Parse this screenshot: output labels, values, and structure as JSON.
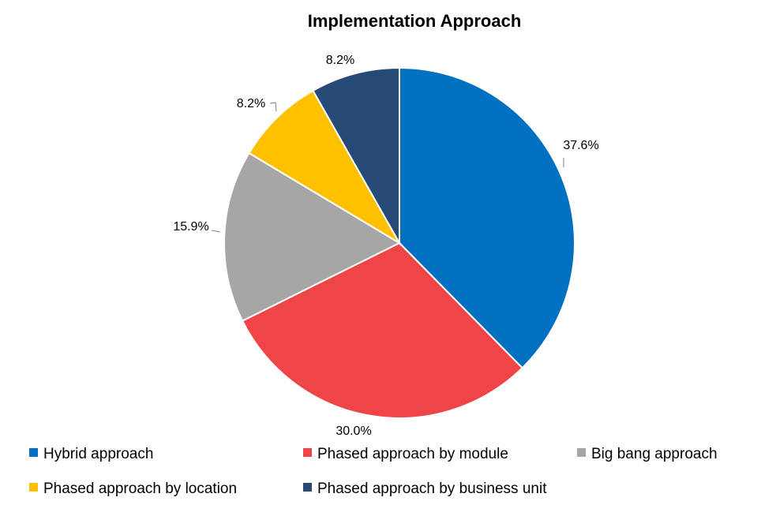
{
  "chart_data": {
    "type": "pie",
    "title": "Implementation Approach",
    "categories": [
      "Hybrid approach",
      "Phased approach by module",
      "Big bang approach",
      "Phased approach by location",
      "Phased approach by business unit"
    ],
    "values": [
      37.6,
      30.0,
      15.9,
      8.2,
      8.2
    ],
    "value_labels": [
      "37.6%",
      "30.0%",
      "15.9%",
      "8.2%",
      "8.2%"
    ],
    "colors": [
      "#0070C0",
      "#EF4547",
      "#A6A6A6",
      "#FFC000",
      "#264A75"
    ],
    "legend_position": "bottom"
  }
}
